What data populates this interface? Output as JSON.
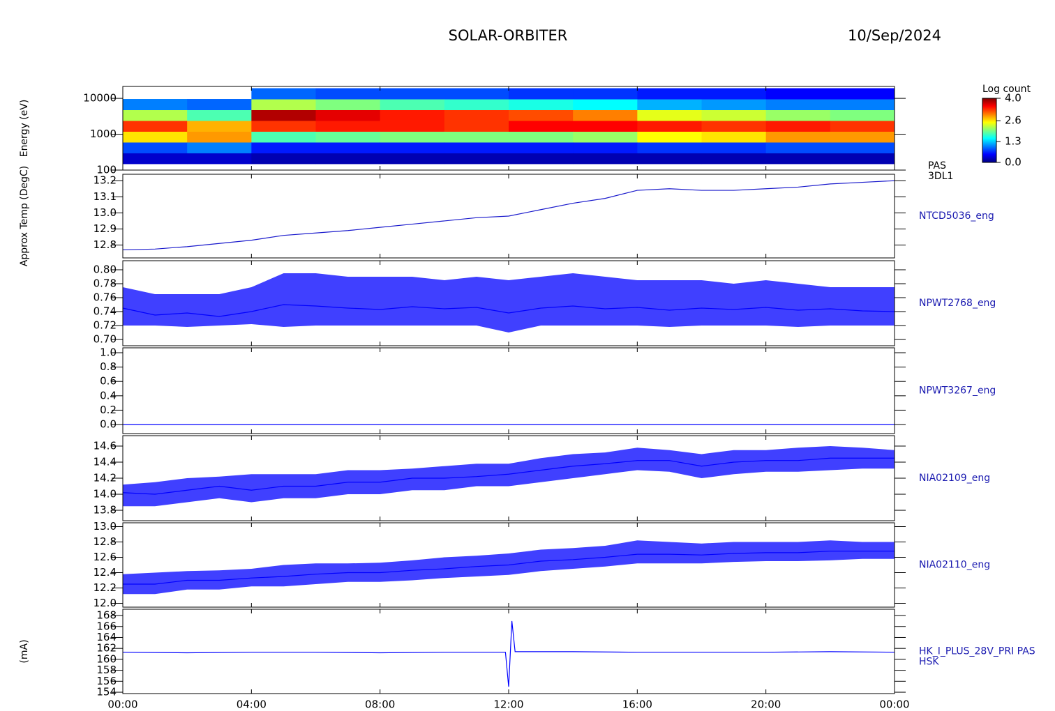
{
  "header": {
    "title": "SOLAR-ORBITER",
    "date": "10/Sep/2024"
  },
  "chart_data": [
    {
      "type": "heatmap",
      "labels": [
        "PAS",
        "3DL1"
      ],
      "ylabel": "Energy (eV)",
      "ylog": true,
      "ylim": [
        100,
        21500
      ],
      "yticks": [
        100,
        1000,
        10000
      ],
      "x_edges": [
        0,
        2,
        4,
        6,
        8,
        10,
        12,
        14,
        16,
        18,
        20,
        22,
        24
      ],
      "y_edges": [
        150,
        300,
        600,
        1200,
        2400,
        4800,
        9600,
        19200
      ],
      "z": [
        [
          0.3,
          0.8,
          2.6,
          3.3,
          2.2,
          1.0,
          null
        ],
        [
          0.3,
          1.0,
          2.9,
          2.8,
          1.8,
          0.9,
          null
        ],
        [
          0.2,
          0.6,
          1.8,
          3.3,
          3.8,
          2.2,
          0.9
        ],
        [
          0.2,
          0.6,
          1.9,
          3.4,
          3.6,
          2.0,
          0.8
        ],
        [
          0.2,
          0.6,
          2.0,
          3.4,
          3.4,
          1.8,
          0.8
        ],
        [
          0.2,
          0.6,
          2.0,
          3.3,
          3.3,
          1.7,
          0.8
        ],
        [
          0.2,
          0.6,
          2.0,
          3.5,
          3.2,
          1.6,
          0.7
        ],
        [
          0.2,
          0.6,
          2.1,
          3.5,
          3.0,
          1.5,
          0.7
        ],
        [
          0.2,
          0.7,
          2.5,
          3.4,
          2.4,
          1.2,
          0.6
        ],
        [
          0.2,
          0.7,
          2.6,
          3.3,
          2.3,
          1.1,
          0.6
        ],
        [
          0.2,
          0.8,
          2.9,
          3.4,
          2.1,
          1.0,
          0.5
        ],
        [
          0.2,
          0.8,
          2.9,
          3.3,
          2.0,
          1.0,
          0.5
        ]
      ],
      "zlim": [
        0,
        4
      ],
      "colorbar_title": "Log count",
      "zticks": [
        {
          "value": 0,
          "label": "0.0"
        },
        1.3,
        2.6,
        {
          "value": 4,
          "label": "4.0"
        }
      ],
      "colormap": [
        "#00007f",
        "#0000ff",
        "#007fff",
        "#00ffff",
        "#7fff7f",
        "#ffff00",
        "#ff7f00",
        "#ff0000",
        "#7f0000"
      ]
    },
    {
      "type": "line",
      "labels": [
        "NTCD5036_eng"
      ],
      "ylabel": "Approx Temp (DegC)",
      "color": "#1a1acc",
      "ylim": [
        12.72,
        13.24
      ],
      "yticks": [
        12.8,
        12.9,
        {
          "value": 13,
          "label": "13.0"
        },
        13.1,
        13.2
      ],
      "x": [
        0,
        1,
        2,
        3,
        4,
        5,
        6,
        7,
        8,
        9,
        10,
        11,
        12,
        13,
        14,
        15,
        16,
        17,
        18,
        19,
        20,
        21,
        22,
        23,
        24
      ],
      "values": [
        12.77,
        12.775,
        12.79,
        12.81,
        12.83,
        12.86,
        12.875,
        12.89,
        12.91,
        12.93,
        12.95,
        12.97,
        12.98,
        13.02,
        13.06,
        13.09,
        13.14,
        13.15,
        13.14,
        13.14,
        13.15,
        13.16,
        13.18,
        13.19,
        13.2
      ]
    },
    {
      "type": "line",
      "labels": [
        "NPWT2768_eng"
      ],
      "color": "#0000ff",
      "ylim": [
        0.691,
        0.813
      ],
      "yticks": [
        {
          "value": 0.7,
          "label": "0.70"
        },
        0.72,
        0.74,
        0.76,
        0.78,
        {
          "value": 0.8,
          "label": "0.80"
        }
      ],
      "x": [
        0,
        1,
        2,
        3,
        4,
        5,
        6,
        7,
        8,
        9,
        10,
        11,
        12,
        13,
        14,
        15,
        16,
        17,
        18,
        19,
        20,
        21,
        22,
        23,
        24
      ],
      "values": [
        0.745,
        0.735,
        0.738,
        0.733,
        0.74,
        0.75,
        0.748,
        0.745,
        0.743,
        0.747,
        0.744,
        0.746,
        0.738,
        0.745,
        0.748,
        0.744,
        0.746,
        0.742,
        0.745,
        0.743,
        0.746,
        0.742,
        0.744,
        0.741,
        0.74
      ],
      "band": {
        "low": [
          0.72,
          0.72,
          0.718,
          0.72,
          0.722,
          0.718,
          0.72,
          0.72,
          0.72,
          0.72,
          0.72,
          0.72,
          0.71,
          0.72,
          0.72,
          0.72,
          0.72,
          0.718,
          0.72,
          0.72,
          0.72,
          0.718,
          0.72,
          0.72,
          0.72
        ],
        "high": [
          0.775,
          0.765,
          0.765,
          0.765,
          0.775,
          0.795,
          0.795,
          0.79,
          0.79,
          0.79,
          0.785,
          0.79,
          0.785,
          0.79,
          0.795,
          0.79,
          0.785,
          0.785,
          0.785,
          0.78,
          0.785,
          0.78,
          0.775,
          0.775,
          0.775
        ]
      }
    },
    {
      "type": "line",
      "labels": [
        "NPWT3267_eng"
      ],
      "color": "#0000ff",
      "ylim": [
        -0.126,
        1.068
      ],
      "yticks": [
        {
          "value": 0,
          "label": "0.0"
        },
        0.2,
        0.4,
        0.6,
        0.8,
        {
          "value": 1,
          "label": "1.0"
        }
      ],
      "x": [
        0,
        24
      ],
      "values": [
        0,
        0
      ]
    },
    {
      "type": "line",
      "labels": [
        "NIA02109_eng"
      ],
      "color": "#0000ff",
      "ylim": [
        13.67,
        14.73
      ],
      "yticks": [
        13.8,
        {
          "value": 14,
          "label": "14.0"
        },
        14.2,
        14.4,
        14.6
      ],
      "x": [
        0,
        1,
        2,
        3,
        4,
        5,
        6,
        7,
        8,
        9,
        10,
        11,
        12,
        13,
        14,
        15,
        16,
        17,
        18,
        19,
        20,
        21,
        22,
        23,
        24
      ],
      "values": [
        14.02,
        14.0,
        14.05,
        14.1,
        14.05,
        14.1,
        14.1,
        14.15,
        14.15,
        14.2,
        14.2,
        14.22,
        14.25,
        14.3,
        14.35,
        14.38,
        14.42,
        14.42,
        14.35,
        14.4,
        14.42,
        14.42,
        14.45,
        14.45,
        14.45
      ],
      "band": {
        "low": [
          13.85,
          13.85,
          13.9,
          13.95,
          13.9,
          13.95,
          13.95,
          14.0,
          14.0,
          14.05,
          14.05,
          14.1,
          14.1,
          14.15,
          14.2,
          14.25,
          14.3,
          14.28,
          14.2,
          14.25,
          14.28,
          14.28,
          14.3,
          14.32,
          14.32
        ],
        "high": [
          14.12,
          14.15,
          14.2,
          14.22,
          14.25,
          14.25,
          14.25,
          14.3,
          14.3,
          14.32,
          14.35,
          14.38,
          14.38,
          14.45,
          14.5,
          14.52,
          14.58,
          14.55,
          14.5,
          14.55,
          14.55,
          14.58,
          14.6,
          14.58,
          14.55
        ]
      }
    },
    {
      "type": "line",
      "labels": [
        "NIA02110_eng"
      ],
      "color": "#0000ff",
      "ylim": [
        11.95,
        13.05
      ],
      "yticks": [
        {
          "value": 12,
          "label": "12.0"
        },
        12.2,
        12.4,
        12.6,
        12.8,
        {
          "value": 13,
          "label": "13.0"
        }
      ],
      "x": [
        0,
        1,
        2,
        3,
        4,
        5,
        6,
        7,
        8,
        9,
        10,
        11,
        12,
        13,
        14,
        15,
        16,
        17,
        18,
        19,
        20,
        21,
        22,
        23,
        24
      ],
      "values": [
        12.25,
        12.25,
        12.3,
        12.3,
        12.33,
        12.35,
        12.38,
        12.4,
        12.4,
        12.43,
        12.45,
        12.48,
        12.5,
        12.55,
        12.57,
        12.6,
        12.64,
        12.64,
        12.63,
        12.65,
        12.66,
        12.66,
        12.68,
        12.68,
        12.68
      ],
      "band": {
        "low": [
          12.12,
          12.12,
          12.18,
          12.18,
          12.22,
          12.22,
          12.25,
          12.28,
          12.28,
          12.3,
          12.33,
          12.35,
          12.37,
          12.42,
          12.45,
          12.48,
          12.52,
          12.52,
          12.52,
          12.54,
          12.55,
          12.55,
          12.56,
          12.58,
          12.58
        ],
        "high": [
          12.38,
          12.4,
          12.42,
          12.43,
          12.45,
          12.5,
          12.52,
          12.52,
          12.53,
          12.56,
          12.6,
          12.62,
          12.65,
          12.7,
          12.72,
          12.75,
          12.82,
          12.8,
          12.78,
          12.8,
          12.8,
          12.8,
          12.82,
          12.8,
          12.8
        ]
      }
    },
    {
      "type": "line",
      "labels": [
        "HK_I_PLUS_28V_PRI PAS",
        "HSK"
      ],
      "ylabel": "(mA)",
      "color": "#0000ff",
      "ylim": [
        153.75,
        169.15
      ],
      "yticks": [
        154,
        156,
        158,
        160,
        162,
        164,
        166,
        168
      ],
      "x": [
        0,
        2,
        4,
        6,
        8,
        10,
        11.9,
        12.0,
        12.1,
        12.2,
        14,
        16,
        18,
        20,
        22,
        24
      ],
      "values": [
        161.3,
        161.2,
        161.3,
        161.3,
        161.2,
        161.3,
        161.3,
        155,
        167,
        161.4,
        161.4,
        161.3,
        161.3,
        161.3,
        161.4,
        161.3
      ],
      "xlim": [
        0,
        24
      ],
      "xticks": [
        {
          "value": 0,
          "label": "00:00"
        },
        {
          "value": 4,
          "label": "04:00"
        },
        {
          "value": 8,
          "label": "08:00"
        },
        {
          "value": 12,
          "label": "12:00"
        },
        {
          "value": 16,
          "label": "16:00"
        },
        {
          "value": 20,
          "label": "20:00"
        },
        {
          "value": 24,
          "label": "00:00"
        }
      ]
    }
  ]
}
